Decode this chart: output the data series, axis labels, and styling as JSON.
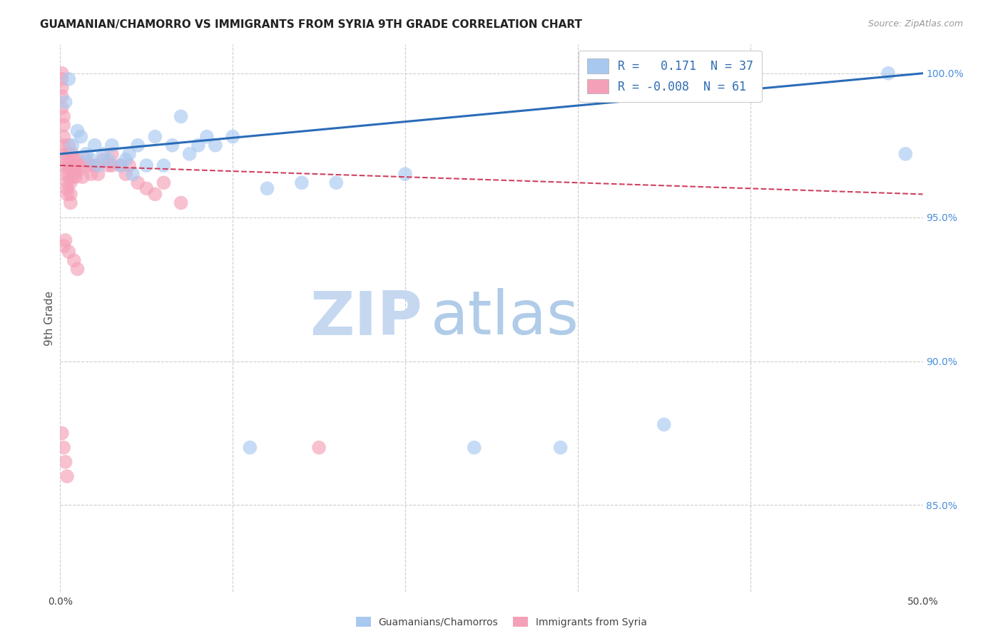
{
  "title": "GUAMANIAN/CHAMORRO VS IMMIGRANTS FROM SYRIA 9TH GRADE CORRELATION CHART",
  "source": "Source: ZipAtlas.com",
  "ylabel": "9th Grade",
  "xlim": [
    0.0,
    0.5
  ],
  "ylim": [
    0.82,
    1.01
  ],
  "ytick_labels_right": [
    "100.0%",
    "95.0%",
    "90.0%",
    "85.0%"
  ],
  "yticks_right": [
    1.0,
    0.95,
    0.9,
    0.85
  ],
  "R_blue": 0.171,
  "N_blue": 37,
  "R_pink": -0.008,
  "N_pink": 61,
  "blue_color": "#A8C8F0",
  "pink_color": "#F4A0B8",
  "blue_line_color": "#2B6CB8",
  "pink_line_color": "#D04060",
  "legend_blue_label": "Guamanians/Chamorros",
  "legend_pink_label": "Immigrants from Syria",
  "watermark_zip": "ZIP",
  "watermark_atlas": "atlas",
  "blue_x": [
    0.003,
    0.005,
    0.007,
    0.01,
    0.012,
    0.015,
    0.018,
    0.02,
    0.022,
    0.025,
    0.028,
    0.03,
    0.035,
    0.038,
    0.04,
    0.042,
    0.045,
    0.05,
    0.055,
    0.06,
    0.065,
    0.07,
    0.075,
    0.08,
    0.085,
    0.09,
    0.1,
    0.11,
    0.12,
    0.14,
    0.16,
    0.2,
    0.24,
    0.29,
    0.35,
    0.48,
    0.49
  ],
  "blue_y": [
    0.99,
    0.998,
    0.975,
    0.98,
    0.978,
    0.972,
    0.97,
    0.975,
    0.968,
    0.972,
    0.97,
    0.975,
    0.968,
    0.97,
    0.972,
    0.965,
    0.975,
    0.968,
    0.978,
    0.968,
    0.975,
    0.985,
    0.972,
    0.975,
    0.978,
    0.975,
    0.978,
    0.87,
    0.96,
    0.962,
    0.962,
    0.965,
    0.87,
    0.87,
    0.878,
    1.0,
    0.972
  ],
  "pink_x": [
    0.001,
    0.001,
    0.001,
    0.001,
    0.001,
    0.002,
    0.002,
    0.002,
    0.002,
    0.003,
    0.003,
    0.003,
    0.003,
    0.004,
    0.004,
    0.004,
    0.005,
    0.005,
    0.005,
    0.005,
    0.006,
    0.006,
    0.006,
    0.007,
    0.007,
    0.007,
    0.008,
    0.008,
    0.009,
    0.009,
    0.01,
    0.01,
    0.012,
    0.013,
    0.015,
    0.017,
    0.018,
    0.02,
    0.022,
    0.025,
    0.028,
    0.03,
    0.035,
    0.038,
    0.04,
    0.045,
    0.05,
    0.055,
    0.06,
    0.07,
    0.002,
    0.003,
    0.005,
    0.008,
    0.01,
    0.001,
    0.002,
    0.003,
    0.004,
    0.03,
    0.15
  ],
  "pink_y": [
    1.0,
    0.998,
    0.995,
    0.992,
    0.988,
    0.985,
    0.982,
    0.978,
    0.975,
    0.972,
    0.97,
    0.968,
    0.965,
    0.962,
    0.96,
    0.958,
    0.975,
    0.972,
    0.968,
    0.965,
    0.962,
    0.958,
    0.955,
    0.972,
    0.968,
    0.964,
    0.97,
    0.966,
    0.968,
    0.964,
    0.97,
    0.966,
    0.968,
    0.964,
    0.97,
    0.968,
    0.965,
    0.968,
    0.965,
    0.97,
    0.968,
    0.972,
    0.968,
    0.965,
    0.968,
    0.962,
    0.96,
    0.958,
    0.962,
    0.955,
    0.94,
    0.942,
    0.938,
    0.935,
    0.932,
    0.875,
    0.87,
    0.865,
    0.86,
    0.968,
    0.87
  ]
}
